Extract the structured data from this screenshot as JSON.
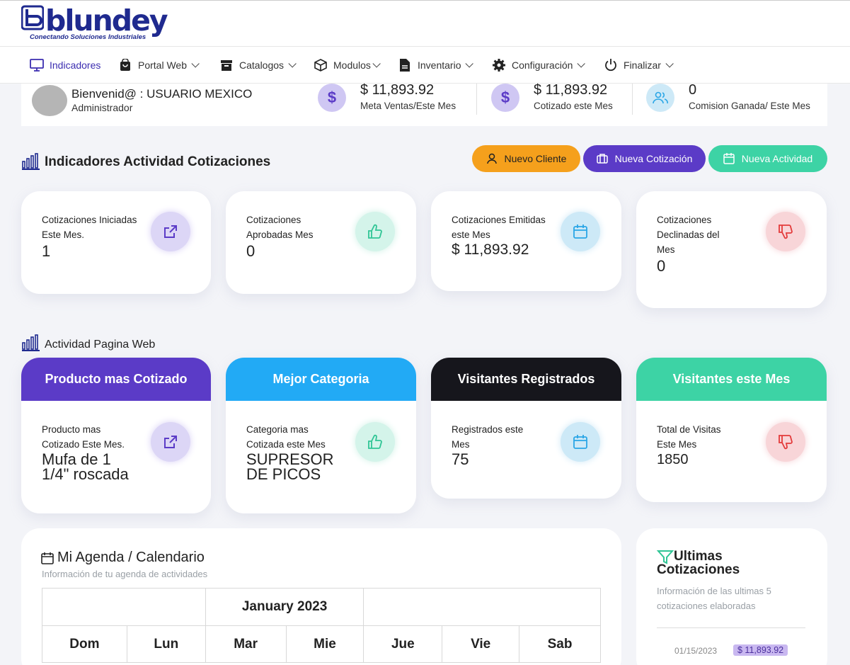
{
  "brand": {
    "name": "blundey",
    "tagline": "Conectando Soluciones Industriales"
  },
  "nav": [
    {
      "label": "Indicadores",
      "icon": "monitor-icon",
      "active": true
    },
    {
      "label": "Portal Web",
      "icon": "shopping-bag-icon"
    },
    {
      "label": "Catalogos",
      "icon": "archive-icon"
    },
    {
      "label": "Modulos",
      "icon": "cube-icon"
    },
    {
      "label": "Inventario",
      "icon": "document-icon"
    },
    {
      "label": "Configuración",
      "icon": "gear-icon"
    },
    {
      "label": "Finalizar",
      "icon": "power-icon"
    }
  ],
  "welcome": {
    "greeting": "Bienvenid@ : USUARIO MEXICO",
    "role": "Administrador"
  },
  "stats": [
    {
      "value": "$ 11,893.92",
      "label": "Meta Ventas/Este Mes",
      "icon": "dollar-icon"
    },
    {
      "value": "$ 11,893.92",
      "label": "Cotizado este Mes",
      "icon": "dollar-icon"
    },
    {
      "value": "0",
      "label": "Comision Ganada/ Este Mes",
      "icon": "users-icon"
    }
  ],
  "section1": {
    "title": "Indicadores Actividad Cotizaciones"
  },
  "buttons": [
    {
      "label": "Nuevo Cliente",
      "icon": "user-icon",
      "color": "#f5a01c"
    },
    {
      "label": "Nueva Cotización",
      "icon": "briefcase-icon",
      "color": "#5b3bc7"
    },
    {
      "label": "Nueva Actividad",
      "icon": "calendar-icon",
      "color": "#3dd3a5"
    }
  ],
  "quote_cards": [
    {
      "label": "Cotizaciones Iniciadas Este Mes.",
      "value": "1",
      "icon": "external-link-icon"
    },
    {
      "label": "Cotizaciones Aprobadas Mes",
      "value": "0",
      "icon": "thumbs-up-icon"
    },
    {
      "label": "Cotizaciones Emitidas este Mes",
      "value": "$ 11,893.92",
      "icon": "calendar-icon"
    },
    {
      "label": "Cotizaciones Declinadas del Mes",
      "value": "0",
      "icon": "thumbs-down-icon"
    }
  ],
  "section2": {
    "title": "Actividad Pagina Web"
  },
  "web_cards": [
    {
      "header": "Producto mas Cotizado",
      "label": "Producto mas Cotizado Este Mes.",
      "value": "Mufa de 1 1/4\" roscada",
      "color": "#5b3bc7",
      "icon": "external-link-icon"
    },
    {
      "header": "Mejor Categoria",
      "label": "Categoria mas Cotizada este Mes",
      "value": "SUPRESOR DE PICOS",
      "color": "#22aaf5",
      "icon": "thumbs-up-icon"
    },
    {
      "header": "Visitantes Registrados",
      "label": "Registrados este Mes",
      "value": "75",
      "color": "#16161c",
      "icon": "calendar-icon"
    },
    {
      "header": "Visitantes este Mes",
      "label": "Total de Visitas Este Mes",
      "value": "1850",
      "color": "#3dd3a5",
      "icon": "thumbs-down-icon"
    }
  ],
  "agenda": {
    "title": "Mi Agenda / Calendario",
    "subtitle": "Información de tu agenda de actividades",
    "month": "January 2023",
    "days": [
      "Dom",
      "Lun",
      "Mar",
      "Mie",
      "Jue",
      "Vie",
      "Sab"
    ]
  },
  "ultimas": {
    "title": "Ultimas Cotizaciones",
    "subtitle": "Información de las ultimas 5 cotizaciones elaboradas",
    "items": [
      {
        "date": "01/15/2023",
        "amount": "$ 11,893.92"
      }
    ]
  }
}
